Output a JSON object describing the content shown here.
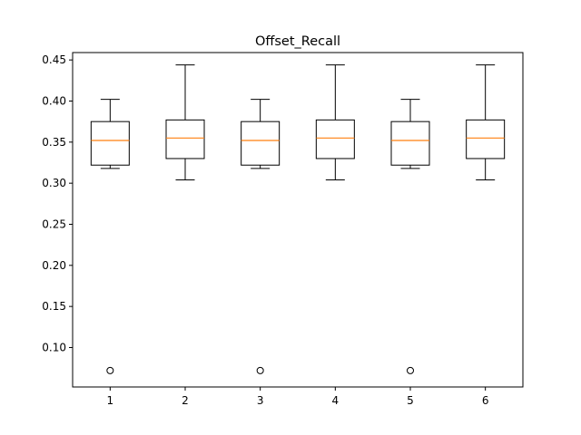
{
  "chart_data": {
    "type": "box",
    "title": "Offset_Recall",
    "xlabel": "",
    "ylabel": "",
    "categories": [
      "1",
      "2",
      "3",
      "4",
      "5",
      "6"
    ],
    "ylim": [
      0.052,
      0.459
    ],
    "yticks": [
      0.1,
      0.15,
      0.2,
      0.25,
      0.3,
      0.35,
      0.4,
      0.45
    ],
    "ytick_labels": [
      "0.10",
      "0.15",
      "0.20",
      "0.25",
      "0.30",
      "0.35",
      "0.40",
      "0.45"
    ],
    "boxes": [
      {
        "whisker_low": 0.318,
        "q1": 0.322,
        "median": 0.352,
        "q3": 0.375,
        "whisker_high": 0.402,
        "fliers": [
          0.072
        ]
      },
      {
        "whisker_low": 0.304,
        "q1": 0.33,
        "median": 0.355,
        "q3": 0.377,
        "whisker_high": 0.444,
        "fliers": []
      },
      {
        "whisker_low": 0.318,
        "q1": 0.322,
        "median": 0.352,
        "q3": 0.375,
        "whisker_high": 0.402,
        "fliers": [
          0.072
        ]
      },
      {
        "whisker_low": 0.304,
        "q1": 0.33,
        "median": 0.355,
        "q3": 0.377,
        "whisker_high": 0.444,
        "fliers": []
      },
      {
        "whisker_low": 0.318,
        "q1": 0.322,
        "median": 0.352,
        "q3": 0.375,
        "whisker_high": 0.402,
        "fliers": [
          0.072
        ]
      },
      {
        "whisker_low": 0.304,
        "q1": 0.33,
        "median": 0.355,
        "q3": 0.377,
        "whisker_high": 0.444,
        "fliers": []
      }
    ],
    "grid": false,
    "colors": {
      "box": "#000000",
      "median": "#ff7f0e",
      "flier": "#000000"
    }
  }
}
